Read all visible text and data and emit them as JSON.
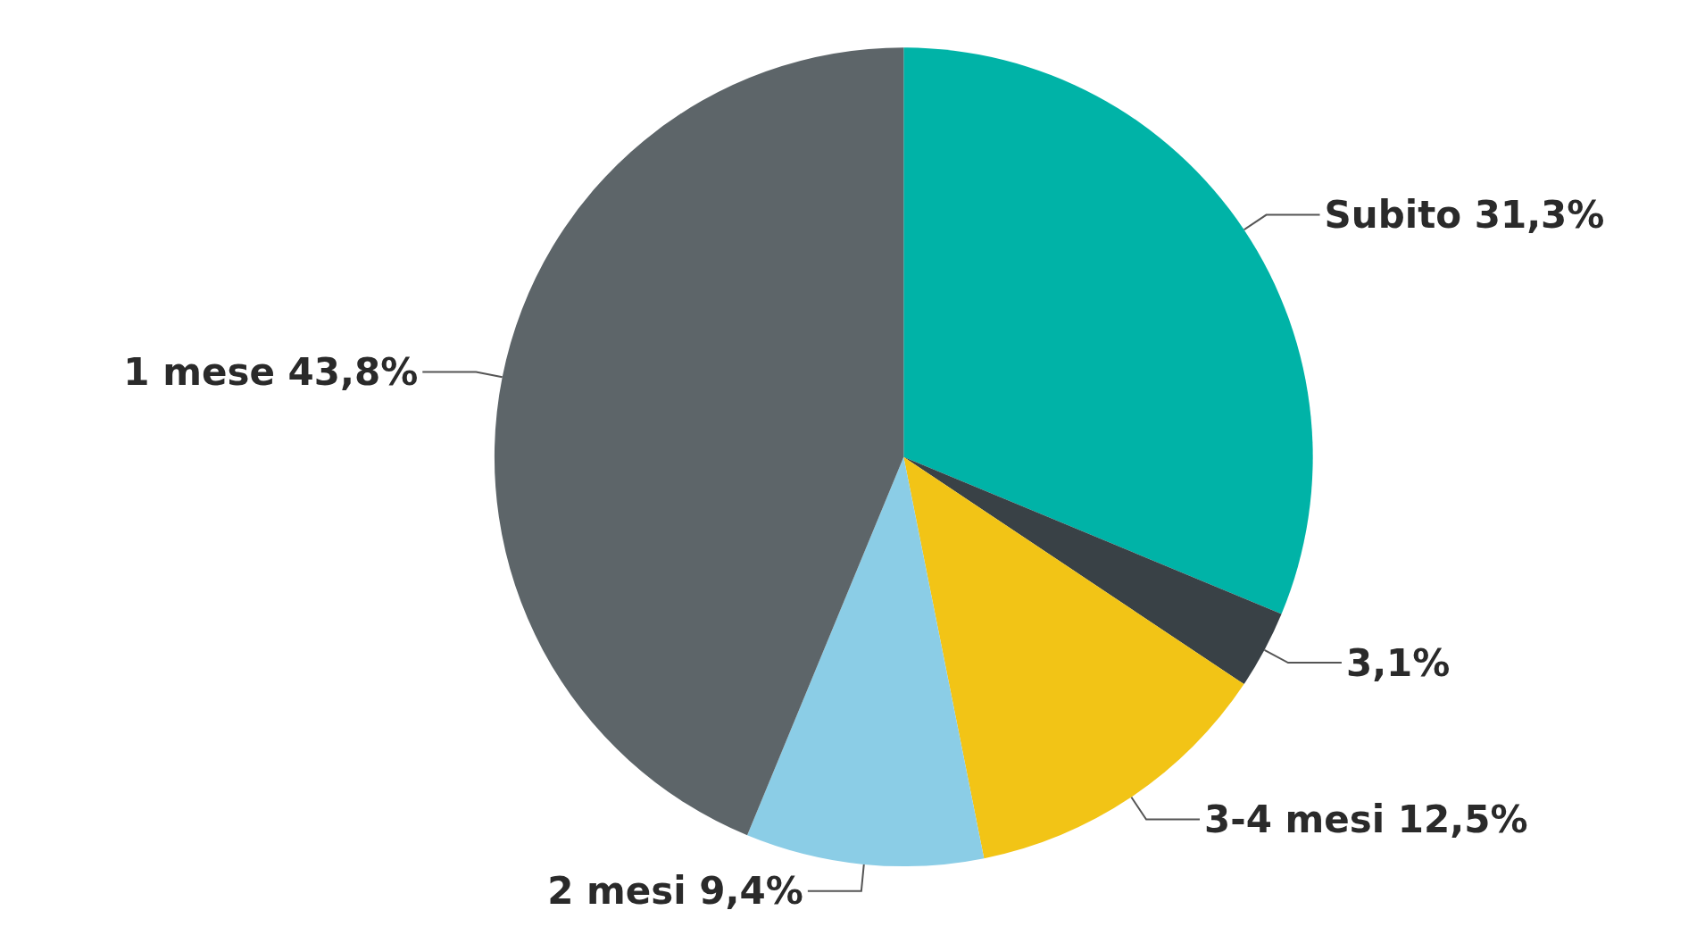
{
  "chart_data": {
    "type": "pie",
    "categories": [
      "Subito",
      null,
      "3-4 mesi",
      "2 mesi",
      "1 mese"
    ],
    "values": [
      31.3,
      3.1,
      12.5,
      9.4,
      43.8
    ],
    "colors": [
      "#00b3a7",
      "#394146",
      "#f2c416",
      "#8bcde6",
      "#5d6569"
    ],
    "value_labels": [
      "31,3%",
      "3,1%",
      "12,5%",
      "9,4%",
      "43,8%"
    ]
  }
}
